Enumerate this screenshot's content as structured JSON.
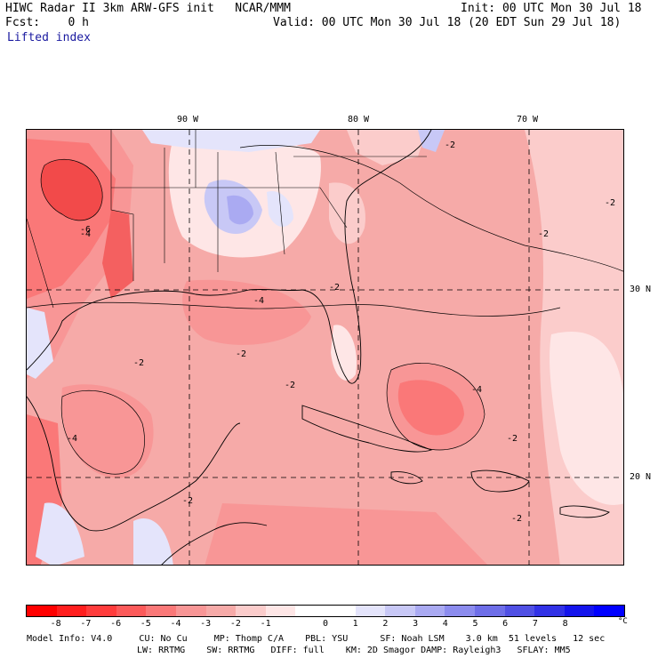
{
  "header": {
    "title": "HIWC Radar II 3km ARW-GFS init   NCAR/MMM",
    "init": "Init: 00 UTC Mon 30 Jul 18",
    "fcst": "Fcst:    0 h",
    "valid": "Valid: 00 UTC Mon 30 Jul 18 (20 EDT Sun 29 Jul 18)",
    "field": "Lifted index"
  },
  "map": {
    "lon_labels": [
      "90 W",
      "80 W",
      "70 W"
    ],
    "lat_labels": [
      "30 N",
      "20 N"
    ],
    "contour_label": "-2",
    "contour_label_4": "-4",
    "contour_label_6": "-6"
  },
  "colorbar": {
    "colors": [
      "#ff0000",
      "#ff1e1e",
      "#ff3c3c",
      "#fc5a5a",
      "#fa7878",
      "#f89696",
      "#f6aaa8",
      "#fbcccb",
      "#fee6e6",
      "#ffffff",
      "#ffffff",
      "#e4e4fb",
      "#c8c8f6",
      "#aaaaf2",
      "#8c8cee",
      "#6e6ee8",
      "#5050e4",
      "#3232e6",
      "#1414ec",
      "#0000ff"
    ],
    "ticks": [
      "-8",
      "-7",
      "-6",
      "-5",
      "-4",
      "-3",
      "-2",
      "-1",
      "0",
      "1",
      "2",
      "3",
      "4",
      "5",
      "6",
      "7",
      "8"
    ],
    "unit": "°C"
  },
  "footer": {
    "line1": "Model Info: V4.0     CU: No Cu     MP: Thomp C/A    PBL: YSU      SF: Noah LSM    3.0 km  51 levels   12 sec",
    "line2": "LW: RRTMG    SW: RRTMG   DIFF: full    KM: 2D Smagor DAMP: Rayleigh3   SFLAY: MM5"
  }
}
